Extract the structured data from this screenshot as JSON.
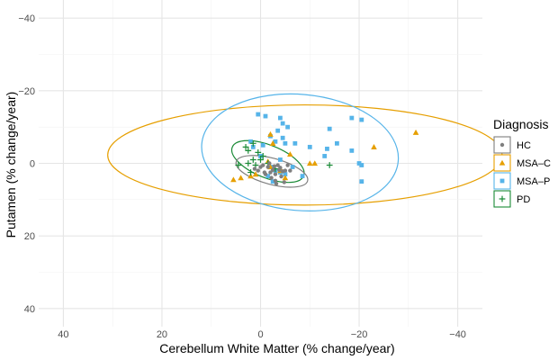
{
  "chart_data": {
    "type": "scatter",
    "xlabel": "Cerebellum White Matter (% change/year)",
    "ylabel": "Putamen (% change/year)",
    "xlim": [
      45,
      -45
    ],
    "ylim": [
      -45,
      45
    ],
    "x_reversed": true,
    "y_reversed": true,
    "x_ticks": [
      40,
      20,
      0,
      -20,
      -40
    ],
    "x_tick_labels": [
      "40",
      "20",
      "0",
      "−20",
      "−40"
    ],
    "y_ticks": [
      -40,
      -20,
      0,
      20,
      40
    ],
    "y_tick_labels": [
      "−40",
      "−20",
      "0",
      "20",
      "40"
    ],
    "grid": true,
    "legend": {
      "title": "Diagnosis",
      "position": "right"
    },
    "series": [
      {
        "name": "HC",
        "color": "#7f7f7f",
        "marker": "circle",
        "points": [
          [
            1.2,
            1.5
          ],
          [
            0.5,
            2.0
          ],
          [
            -0.5,
            0.5
          ],
          [
            -1.5,
            1.0
          ],
          [
            -2.0,
            2.5
          ],
          [
            -2.5,
            1.8
          ],
          [
            -3.0,
            3.0
          ],
          [
            -3.5,
            0.5
          ],
          [
            -4.0,
            1.2
          ],
          [
            -4.5,
            2.2
          ],
          [
            -2.2,
            4.0
          ],
          [
            -3.0,
            4.8
          ],
          [
            -4.2,
            3.6
          ],
          [
            -5.0,
            2.0
          ],
          [
            -1.0,
            3.0
          ],
          [
            0.0,
            1.0
          ],
          [
            -1.8,
            0.0
          ],
          [
            -2.8,
            0.8
          ],
          [
            -3.8,
            1.8
          ],
          [
            -0.8,
            2.5
          ],
          [
            -5.5,
            0.5
          ],
          [
            -6.0,
            2.0
          ],
          [
            -3.2,
            5.6
          ],
          [
            -4.8,
            5.2
          ]
        ],
        "ellipse": {
          "center": [
            -2.3,
            2.2
          ],
          "rx": 7.5,
          "ry": 3.6,
          "angle_deg": 15
        }
      },
      {
        "name": "MSA–C",
        "color": "#E69F00",
        "marker": "triangle",
        "points": [
          [
            2.0,
            3.5
          ],
          [
            1.0,
            3.0
          ],
          [
            -2.0,
            1.0
          ],
          [
            -4.0,
            2.0
          ],
          [
            -2.0,
            -8.0
          ],
          [
            -2.5,
            -5.5
          ],
          [
            -10.0,
            0.0
          ],
          [
            -11.0,
            0.0
          ],
          [
            -23.0,
            -4.5
          ],
          [
            -31.5,
            -8.5
          ],
          [
            -4.0,
            1.5
          ],
          [
            -5.0,
            4.0
          ],
          [
            -6.0,
            -2.5
          ],
          [
            -1.5,
            -0.5
          ],
          [
            4.0,
            4.0
          ],
          [
            5.5,
            4.5
          ]
        ],
        "ellipse": {
          "center": [
            -9.0,
            -2.3
          ],
          "rx": 40.0,
          "ry": 13.8,
          "angle_deg": 0
        }
      },
      {
        "name": "MSA–P",
        "color": "#56B4E9",
        "marker": "square",
        "points": [
          [
            0.5,
            -13.5
          ],
          [
            -1.0,
            -13.0
          ],
          [
            -4.0,
            -12.5
          ],
          [
            -4.5,
            -11.0
          ],
          [
            -3.5,
            -9.0
          ],
          [
            -5.5,
            -10.0
          ],
          [
            -4.5,
            -7.0
          ],
          [
            -3.0,
            -6.0
          ],
          [
            -2.0,
            -7.5
          ],
          [
            -5.0,
            -5.5
          ],
          [
            -7.0,
            -5.5
          ],
          [
            -10.0,
            -4.5
          ],
          [
            -13.5,
            -4.0
          ],
          [
            -15.5,
            -5.5
          ],
          [
            -14.0,
            -9.5
          ],
          [
            -18.5,
            -12.5
          ],
          [
            -20.5,
            -12.0
          ],
          [
            -18.5,
            -3.5
          ],
          [
            -20.0,
            0.0
          ],
          [
            -20.5,
            5.0
          ],
          [
            -20.5,
            0.5
          ],
          [
            -8.5,
            3.5
          ],
          [
            -6.5,
            1.0
          ],
          [
            -4.0,
            2.5
          ],
          [
            -2.5,
            1.0
          ],
          [
            -0.5,
            -5.0
          ],
          [
            1.5,
            -4.5
          ],
          [
            -5.0,
            3.0
          ],
          [
            -4.0,
            -1.0
          ],
          [
            -3.0,
            2.0
          ],
          [
            0.0,
            -2.0
          ],
          [
            2.0,
            -6.0
          ],
          [
            -1.5,
            3.5
          ],
          [
            -2.5,
            5.0
          ],
          [
            -13.0,
            -2.0
          ]
        ],
        "ellipse": {
          "center": [
            -8.0,
            -3.0
          ],
          "rx": 20.0,
          "ry": 16.0,
          "angle_deg": 5
        }
      },
      {
        "name": "PD",
        "color": "#1a8a36",
        "marker": "plus",
        "points": [
          [
            3.0,
            -4.5
          ],
          [
            2.5,
            -3.5
          ],
          [
            1.5,
            -1.0
          ],
          [
            0.5,
            -3.0
          ],
          [
            2.5,
            0.0
          ],
          [
            -0.5,
            -2.0
          ],
          [
            -1.5,
            0.0
          ],
          [
            -3.0,
            1.5
          ],
          [
            1.5,
            -5.5
          ],
          [
            4.5,
            0.5
          ],
          [
            2.0,
            2.5
          ],
          [
            -14.0,
            0.5
          ],
          [
            1.0,
            0.5
          ],
          [
            0.0,
            -1.0
          ]
        ],
        "ellipse": {
          "center": [
            -1.5,
            -0.5
          ],
          "rx": 7.8,
          "ry": 4.5,
          "angle_deg": 22
        }
      }
    ]
  }
}
